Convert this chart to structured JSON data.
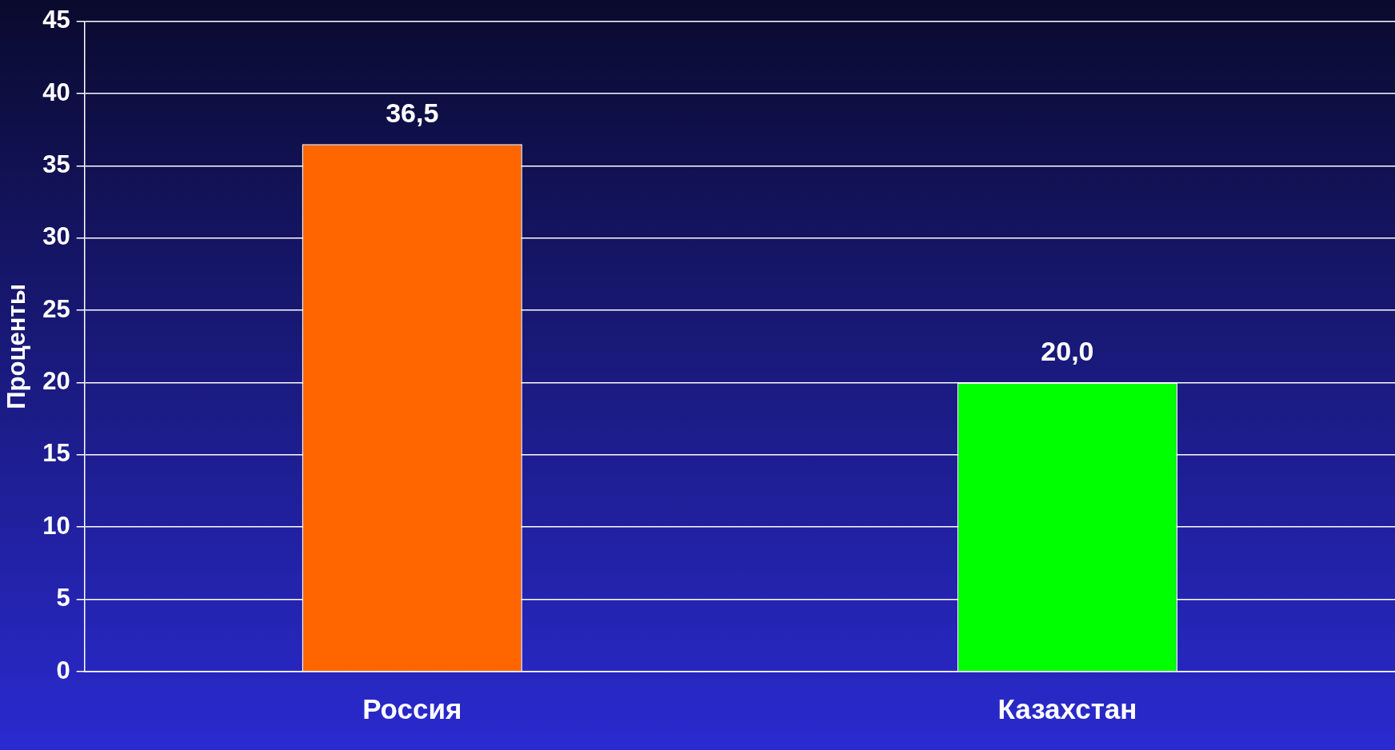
{
  "chart_data": {
    "type": "bar",
    "ylabel": "Проценты",
    "categories": [
      "Россия",
      "Казахстан"
    ],
    "values": [
      36.5,
      20.0
    ],
    "colors": [
      "#ff6600",
      "#00ff00"
    ],
    "value_labels": [
      "36,5",
      "20,0"
    ],
    "ylim": [
      0,
      45
    ],
    "yticks": [
      0,
      5,
      10,
      15,
      20,
      25,
      30,
      35,
      40,
      45
    ],
    "grid": "y"
  }
}
